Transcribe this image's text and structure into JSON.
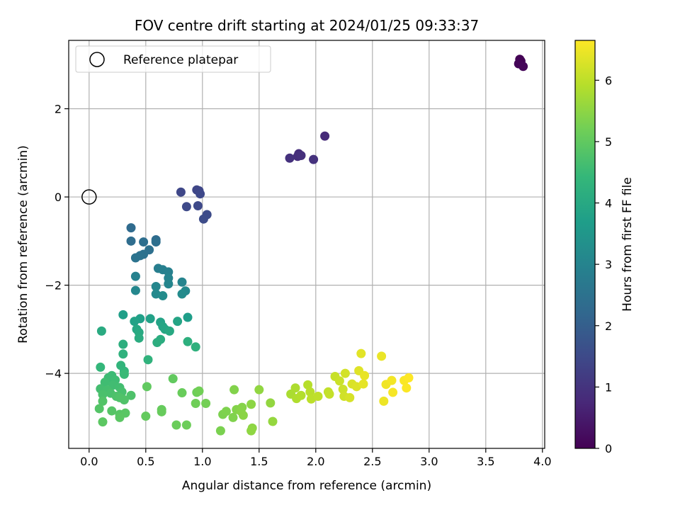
{
  "chart_data": {
    "type": "scatter",
    "title": "FOV centre drift starting at 2024/01/25 09:33:37",
    "xlabel": "Angular distance from reference (arcmin)",
    "ylabel": "Rotation from reference (arcmin)",
    "xlim": [
      -0.18,
      4.02
    ],
    "ylim": [
      -5.7,
      3.55
    ],
    "xticks": [
      0.0,
      0.5,
      1.0,
      1.5,
      2.0,
      2.5,
      3.0,
      3.5,
      4.0
    ],
    "xtick_labels": [
      "0.0",
      "0.5",
      "1.0",
      "1.5",
      "2.0",
      "2.5",
      "3.0",
      "3.5",
      "4.0"
    ],
    "yticks": [
      -4,
      -2,
      0,
      2
    ],
    "ytick_labels": [
      "−4",
      "−2",
      "0",
      "2"
    ],
    "grid": true,
    "legend": {
      "position": "top-left",
      "entries": [
        "Reference platepar"
      ]
    },
    "reference_point": {
      "x": 0.0,
      "y": 0.0
    },
    "colorbar": {
      "label": "Hours from first FF file",
      "range": [
        0,
        6.65
      ],
      "ticks": [
        0,
        1,
        2,
        3,
        4,
        5,
        6
      ],
      "tick_labels": [
        "0",
        "1",
        "2",
        "3",
        "4",
        "5",
        "6"
      ],
      "colormap": "viridis"
    },
    "points": [
      {
        "x": 3.8,
        "y": 3.12,
        "c": 0.0
      },
      {
        "x": 3.81,
        "y": 3.08,
        "c": 0.03
      },
      {
        "x": 3.79,
        "y": 3.02,
        "c": 0.06
      },
      {
        "x": 3.83,
        "y": 2.96,
        "c": 0.1
      },
      {
        "x": 2.08,
        "y": 1.38,
        "c": 0.8
      },
      {
        "x": 1.85,
        "y": 0.98,
        "c": 0.85
      },
      {
        "x": 1.84,
        "y": 0.92,
        "c": 0.88
      },
      {
        "x": 1.87,
        "y": 0.94,
        "c": 0.91
      },
      {
        "x": 1.77,
        "y": 0.88,
        "c": 0.94
      },
      {
        "x": 1.98,
        "y": 0.85,
        "c": 0.97
      },
      {
        "x": 0.95,
        "y": 0.16,
        "c": 1.4
      },
      {
        "x": 0.97,
        "y": 0.14,
        "c": 1.42
      },
      {
        "x": 0.81,
        "y": 0.11,
        "c": 1.44
      },
      {
        "x": 0.98,
        "y": 0.07,
        "c": 1.46
      },
      {
        "x": 0.96,
        "y": -0.2,
        "c": 1.48
      },
      {
        "x": 0.86,
        "y": -0.22,
        "c": 1.5
      },
      {
        "x": 1.04,
        "y": -0.4,
        "c": 1.52
      },
      {
        "x": 1.01,
        "y": -0.5,
        "c": 1.55
      },
      {
        "x": 0.37,
        "y": -0.7,
        "c": 2.3
      },
      {
        "x": 0.59,
        "y": -0.97,
        "c": 2.33
      },
      {
        "x": 0.37,
        "y": -1.0,
        "c": 2.36
      },
      {
        "x": 0.48,
        "y": -1.02,
        "c": 2.39
      },
      {
        "x": 0.59,
        "y": -1.02,
        "c": 2.42
      },
      {
        "x": 0.53,
        "y": -1.2,
        "c": 2.45
      },
      {
        "x": 0.48,
        "y": -1.3,
        "c": 2.48
      },
      {
        "x": 0.45,
        "y": -1.33,
        "c": 2.51
      },
      {
        "x": 0.41,
        "y": -1.38,
        "c": 2.54
      },
      {
        "x": 0.61,
        "y": -1.62,
        "c": 2.85
      },
      {
        "x": 0.65,
        "y": -1.65,
        "c": 2.88
      },
      {
        "x": 0.7,
        "y": -1.7,
        "c": 2.91
      },
      {
        "x": 0.41,
        "y": -1.8,
        "c": 2.94
      },
      {
        "x": 0.7,
        "y": -1.84,
        "c": 2.97
      },
      {
        "x": 0.82,
        "y": -1.93,
        "c": 3.0
      },
      {
        "x": 0.7,
        "y": -1.97,
        "c": 3.03
      },
      {
        "x": 0.59,
        "y": -2.03,
        "c": 3.06
      },
      {
        "x": 0.41,
        "y": -2.12,
        "c": 3.09
      },
      {
        "x": 0.85,
        "y": -2.13,
        "c": 3.12
      },
      {
        "x": 0.59,
        "y": -2.2,
        "c": 3.15
      },
      {
        "x": 0.82,
        "y": -2.2,
        "c": 3.18
      },
      {
        "x": 0.65,
        "y": -2.24,
        "c": 3.21
      },
      {
        "x": 0.87,
        "y": -2.73,
        "c": 3.7
      },
      {
        "x": 0.3,
        "y": -2.67,
        "c": 3.73
      },
      {
        "x": 0.45,
        "y": -2.76,
        "c": 3.76
      },
      {
        "x": 0.54,
        "y": -2.76,
        "c": 3.79
      },
      {
        "x": 0.4,
        "y": -2.82,
        "c": 3.82
      },
      {
        "x": 0.63,
        "y": -2.84,
        "c": 3.85
      },
      {
        "x": 0.78,
        "y": -2.82,
        "c": 3.88
      },
      {
        "x": 0.65,
        "y": -2.94,
        "c": 3.91
      },
      {
        "x": 0.67,
        "y": -3.0,
        "c": 3.94
      },
      {
        "x": 0.42,
        "y": -3.0,
        "c": 3.97
      },
      {
        "x": 0.71,
        "y": -3.04,
        "c": 4.0
      },
      {
        "x": 0.44,
        "y": -3.07,
        "c": 4.03
      },
      {
        "x": 0.11,
        "y": -3.04,
        "c": 4.06
      },
      {
        "x": 0.44,
        "y": -3.2,
        "c": 4.09
      },
      {
        "x": 0.63,
        "y": -3.23,
        "c": 4.12
      },
      {
        "x": 0.6,
        "y": -3.3,
        "c": 4.15
      },
      {
        "x": 0.3,
        "y": -3.34,
        "c": 4.18
      },
      {
        "x": 0.87,
        "y": -3.28,
        "c": 4.21
      },
      {
        "x": 0.94,
        "y": -3.4,
        "c": 4.24
      },
      {
        "x": 0.3,
        "y": -3.56,
        "c": 4.27
      },
      {
        "x": 0.52,
        "y": -3.69,
        "c": 4.3
      },
      {
        "x": 0.28,
        "y": -3.82,
        "c": 4.33
      },
      {
        "x": 0.31,
        "y": -3.95,
        "c": 4.36
      },
      {
        "x": 0.1,
        "y": -3.86,
        "c": 4.39
      },
      {
        "x": 0.31,
        "y": -4.02,
        "c": 4.5
      },
      {
        "x": 0.2,
        "y": -4.05,
        "c": 4.52
      },
      {
        "x": 0.17,
        "y": -4.1,
        "c": 4.54
      },
      {
        "x": 0.23,
        "y": -4.15,
        "c": 4.56
      },
      {
        "x": 0.14,
        "y": -4.2,
        "c": 4.58
      },
      {
        "x": 0.21,
        "y": -4.27,
        "c": 4.6
      },
      {
        "x": 0.27,
        "y": -4.32,
        "c": 4.62
      },
      {
        "x": 0.1,
        "y": -4.35,
        "c": 4.64
      },
      {
        "x": 0.16,
        "y": -4.38,
        "c": 4.66
      },
      {
        "x": 0.29,
        "y": -4.42,
        "c": 4.68
      },
      {
        "x": 0.19,
        "y": -4.45,
        "c": 4.7
      },
      {
        "x": 0.12,
        "y": -4.48,
        "c": 4.72
      },
      {
        "x": 0.24,
        "y": -4.52,
        "c": 4.74
      },
      {
        "x": 0.37,
        "y": -4.5,
        "c": 4.76
      },
      {
        "x": 0.27,
        "y": -4.55,
        "c": 4.78
      },
      {
        "x": 0.31,
        "y": -4.6,
        "c": 4.8
      },
      {
        "x": 0.12,
        "y": -4.63,
        "c": 4.82
      },
      {
        "x": 0.09,
        "y": -4.8,
        "c": 4.84
      },
      {
        "x": 0.2,
        "y": -4.85,
        "c": 4.86
      },
      {
        "x": 0.27,
        "y": -4.93,
        "c": 4.88
      },
      {
        "x": 0.32,
        "y": -4.9,
        "c": 4.9
      },
      {
        "x": 0.27,
        "y": -5.0,
        "c": 4.92
      },
      {
        "x": 0.12,
        "y": -5.1,
        "c": 4.94
      },
      {
        "x": 0.51,
        "y": -4.3,
        "c": 5.0
      },
      {
        "x": 0.74,
        "y": -4.12,
        "c": 5.02
      },
      {
        "x": 0.5,
        "y": -4.97,
        "c": 5.04
      },
      {
        "x": 0.64,
        "y": -4.82,
        "c": 5.06
      },
      {
        "x": 0.64,
        "y": -4.87,
        "c": 5.08
      },
      {
        "x": 0.82,
        "y": -4.44,
        "c": 5.1
      },
      {
        "x": 0.77,
        "y": -5.17,
        "c": 5.12
      },
      {
        "x": 0.86,
        "y": -5.17,
        "c": 5.14
      },
      {
        "x": 0.95,
        "y": -4.43,
        "c": 5.16
      },
      {
        "x": 0.94,
        "y": -4.68,
        "c": 5.18
      },
      {
        "x": 0.97,
        "y": -4.4,
        "c": 5.2
      },
      {
        "x": 1.03,
        "y": -4.68,
        "c": 5.22
      },
      {
        "x": 1.16,
        "y": -5.3,
        "c": 5.3
      },
      {
        "x": 1.18,
        "y": -4.93,
        "c": 5.32
      },
      {
        "x": 1.21,
        "y": -4.86,
        "c": 5.34
      },
      {
        "x": 1.27,
        "y": -5.0,
        "c": 5.36
      },
      {
        "x": 1.28,
        "y": -4.37,
        "c": 5.38
      },
      {
        "x": 1.3,
        "y": -4.82,
        "c": 5.4
      },
      {
        "x": 1.35,
        "y": -4.77,
        "c": 5.42
      },
      {
        "x": 1.34,
        "y": -4.86,
        "c": 5.44
      },
      {
        "x": 1.36,
        "y": -4.95,
        "c": 5.46
      },
      {
        "x": 1.43,
        "y": -4.7,
        "c": 5.48
      },
      {
        "x": 1.44,
        "y": -5.24,
        "c": 5.5
      },
      {
        "x": 1.43,
        "y": -5.3,
        "c": 5.52
      },
      {
        "x": 1.5,
        "y": -4.37,
        "c": 5.54
      },
      {
        "x": 1.6,
        "y": -4.67,
        "c": 5.56
      },
      {
        "x": 1.62,
        "y": -5.09,
        "c": 5.58
      },
      {
        "x": 1.78,
        "y": -4.47,
        "c": 5.8
      },
      {
        "x": 1.82,
        "y": -4.33,
        "c": 5.83
      },
      {
        "x": 1.83,
        "y": -4.57,
        "c": 5.86
      },
      {
        "x": 1.87,
        "y": -4.5,
        "c": 5.89
      },
      {
        "x": 1.93,
        "y": -4.26,
        "c": 5.92
      },
      {
        "x": 1.95,
        "y": -4.42,
        "c": 5.95
      },
      {
        "x": 1.96,
        "y": -4.58,
        "c": 5.98
      },
      {
        "x": 2.02,
        "y": -4.52,
        "c": 6.01
      },
      {
        "x": 2.11,
        "y": -4.42,
        "c": 6.04
      },
      {
        "x": 2.12,
        "y": -4.47,
        "c": 6.07
      },
      {
        "x": 2.17,
        "y": -4.07,
        "c": 6.1
      },
      {
        "x": 2.21,
        "y": -4.17,
        "c": 6.13
      },
      {
        "x": 2.24,
        "y": -4.36,
        "c": 6.16
      },
      {
        "x": 2.25,
        "y": -4.52,
        "c": 6.19
      },
      {
        "x": 2.26,
        "y": -4.0,
        "c": 6.22
      },
      {
        "x": 2.3,
        "y": -4.55,
        "c": 6.25
      },
      {
        "x": 2.32,
        "y": -4.24,
        "c": 6.28
      },
      {
        "x": 2.36,
        "y": -4.3,
        "c": 6.31
      },
      {
        "x": 2.38,
        "y": -3.94,
        "c": 6.34
      },
      {
        "x": 2.4,
        "y": -3.55,
        "c": 6.37
      },
      {
        "x": 2.42,
        "y": -4.24,
        "c": 6.4
      },
      {
        "x": 2.43,
        "y": -4.05,
        "c": 6.43
      },
      {
        "x": 2.58,
        "y": -3.61,
        "c": 6.46
      },
      {
        "x": 2.6,
        "y": -4.63,
        "c": 6.49
      },
      {
        "x": 2.62,
        "y": -4.25,
        "c": 6.52
      },
      {
        "x": 2.67,
        "y": -4.16,
        "c": 6.55
      },
      {
        "x": 2.68,
        "y": -4.43,
        "c": 6.58
      },
      {
        "x": 2.78,
        "y": -4.16,
        "c": 6.61
      },
      {
        "x": 2.8,
        "y": -4.33,
        "c": 6.63
      },
      {
        "x": 2.82,
        "y": -4.1,
        "c": 6.65
      }
    ]
  }
}
